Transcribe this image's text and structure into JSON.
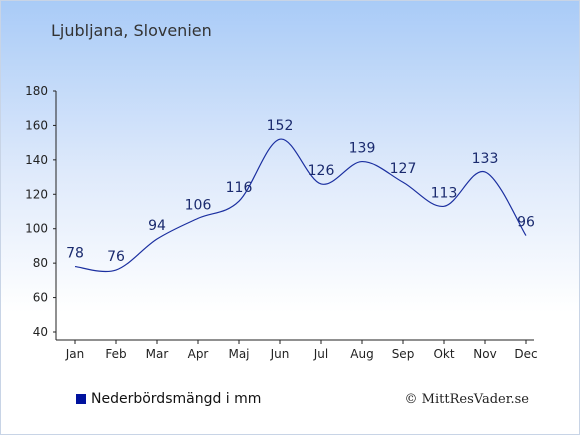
{
  "chart_data": {
    "type": "line",
    "title": "Ljubljana, Slovenien",
    "categories": [
      "Jan",
      "Feb",
      "Mar",
      "Apr",
      "Maj",
      "Jun",
      "Jul",
      "Aug",
      "Sep",
      "Okt",
      "Nov",
      "Dec"
    ],
    "series": [
      {
        "name": "Nederbördsmängd i mm",
        "values": [
          78,
          76,
          94,
          106,
          116,
          152,
          126,
          139,
          127,
          113,
          133,
          96
        ]
      }
    ],
    "ylim": [
      40,
      180
    ],
    "yticks": [
      40,
      60,
      80,
      100,
      120,
      140,
      160,
      180
    ],
    "grid": false,
    "legend": "bottom-left",
    "line_color": "#1b2fa0"
  },
  "legend": {
    "label": "Nederbördsmängd i mm",
    "color": "#00129e"
  },
  "credit": "© MittResVader.se"
}
